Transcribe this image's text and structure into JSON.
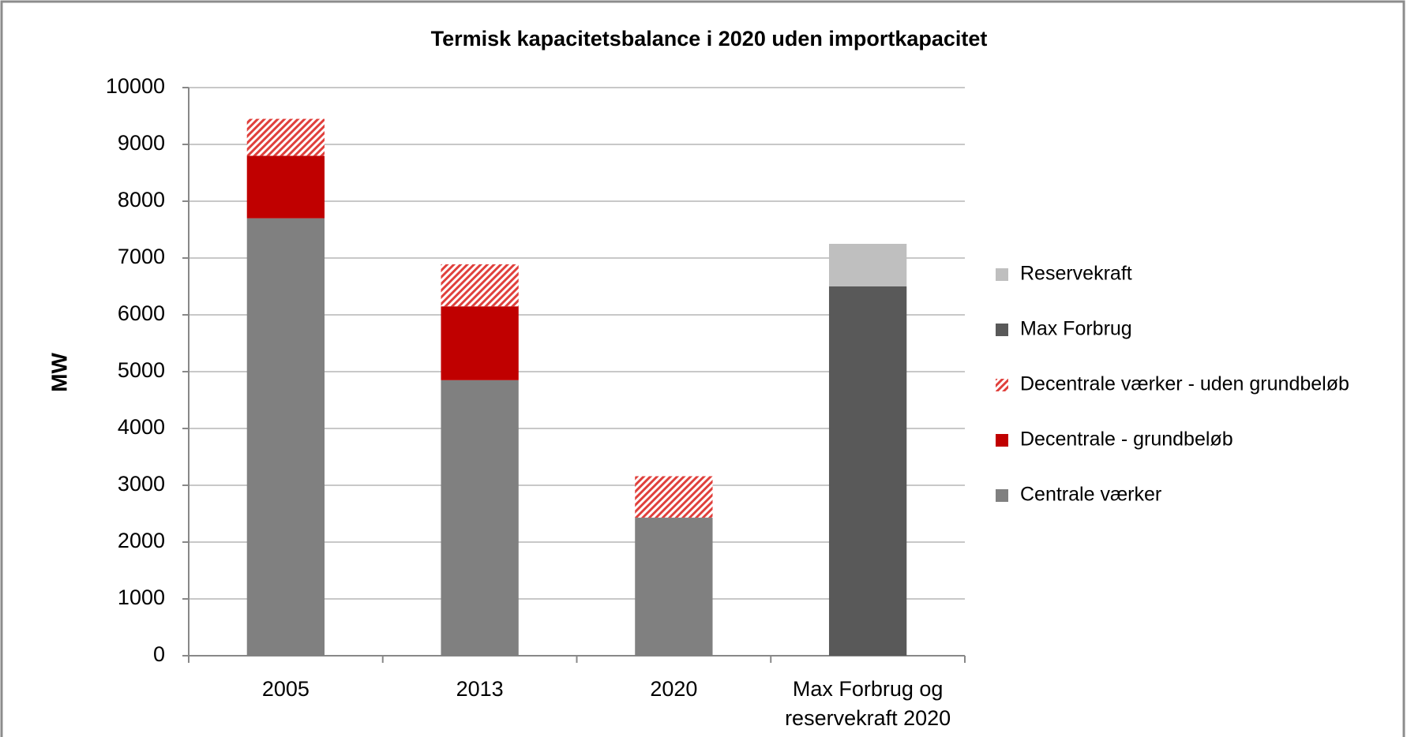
{
  "chart_data": {
    "type": "stacked_bar",
    "title": "Termisk kapacitetsbalance i 2020 uden importkapacitet",
    "ylabel": "MW",
    "categories": [
      "2005",
      "2013",
      "2020",
      "Max Forbrug og reservekraft 2020"
    ],
    "series": [
      {
        "name": "Centrale værker",
        "color": "#808080",
        "values": [
          7700,
          4850,
          2430,
          null
        ]
      },
      {
        "name": "Decentrale - grundbeløb",
        "color": "#c00000",
        "values": [
          1100,
          1300,
          null,
          null
        ]
      },
      {
        "name": "Decentrale værker - uden grundbeløb",
        "color": "#e0403c",
        "pattern": "hatch",
        "values": [
          650,
          740,
          730,
          null
        ]
      },
      {
        "name": "Max Forbrug",
        "color": "#595959",
        "values": [
          null,
          null,
          null,
          6500
        ]
      },
      {
        "name": "Reservekraft",
        "color": "#bfbfbf",
        "values": [
          null,
          null,
          null,
          750
        ]
      }
    ],
    "ylim": [
      0,
      10000
    ],
    "yticks": [
      0,
      1000,
      2000,
      3000,
      4000,
      5000,
      6000,
      7000,
      8000,
      9000,
      10000
    ],
    "grid": true,
    "legend": "right"
  }
}
